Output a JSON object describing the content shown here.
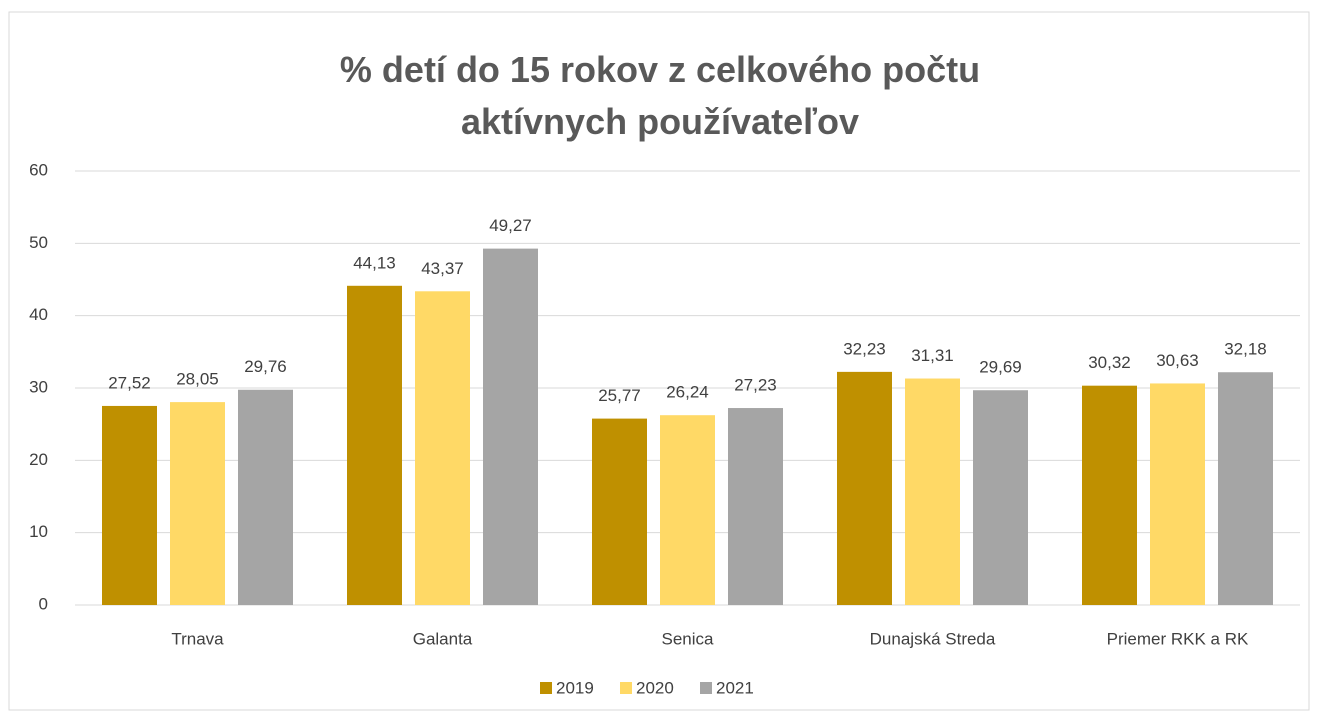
{
  "chart_data": {
    "type": "bar",
    "title": "% detí do 15 rokov z celkového počtu aktívnych používateľov",
    "categories": [
      "Trnava",
      "Galanta",
      "Senica",
      "Dunajská Streda",
      "Priemer RKK a RK"
    ],
    "series": [
      {
        "name": "2019",
        "color": "#bf9000",
        "values": [
          27.52,
          44.13,
          25.77,
          32.23,
          30.32
        ],
        "value_labels": [
          "27,52",
          "44,13",
          "25,77",
          "32,23",
          "30,32"
        ]
      },
      {
        "name": "2020",
        "color": "#ffd966",
        "values": [
          28.05,
          43.37,
          26.24,
          31.31,
          30.63
        ],
        "value_labels": [
          "28,05",
          "43,37",
          "26,24",
          "31,31",
          "30,63"
        ]
      },
      {
        "name": "2021",
        "color": "#a5a5a5",
        "values": [
          29.76,
          49.27,
          27.23,
          29.69,
          32.18
        ],
        "value_labels": [
          "29,76",
          "49,27",
          "27,23",
          "29,69",
          "32,18"
        ]
      }
    ],
    "ylim": [
      0,
      60
    ],
    "yticks": [
      0,
      10,
      20,
      30,
      40,
      50,
      60
    ],
    "grid": true,
    "legend": "bottom"
  }
}
